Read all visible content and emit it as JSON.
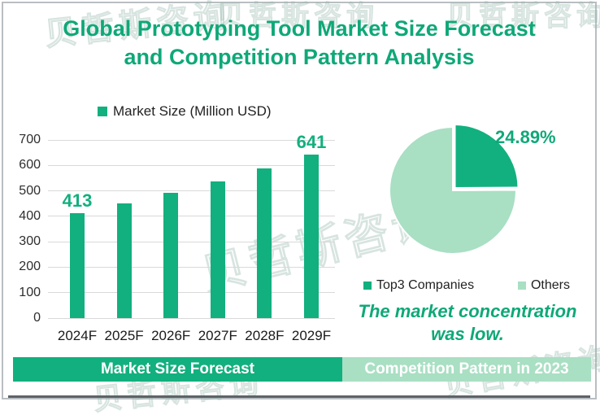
{
  "page": {
    "title_line1": "Global Prototyping Tool Market Size Forecast",
    "title_line2": "and Competition Pattern Analysis"
  },
  "colors": {
    "green": "#0FA878",
    "green_bright": "#12B07E",
    "green_light": "#A9DFC3",
    "gridline": "#D9D9D9",
    "axis_text": "#2E2E2E",
    "frame_border": "#B9BEC2",
    "bottom_rule": "#5D6367"
  },
  "watermark": {
    "text": "贝哲斯咨询"
  },
  "chart_data": [
    {
      "type": "bar",
      "title": "Market Size Forecast",
      "legend": [
        "Market Size (Million USD)"
      ],
      "categories": [
        "2024F",
        "2025F",
        "2026F",
        "2027F",
        "2028F",
        "2029F"
      ],
      "values": [
        413,
        451,
        492,
        538,
        587,
        641
      ],
      "labeled_points": [
        {
          "category": "2024F",
          "label": "413"
        },
        {
          "category": "2029F",
          "label": "641"
        }
      ],
      "xlabel": "",
      "ylabel": "",
      "ylim": [
        0,
        700
      ],
      "ytick_step": 100,
      "grid": true,
      "bar_color": "#12B07E"
    },
    {
      "type": "pie",
      "title": "Competition Pattern in 2023",
      "labels": [
        "Top3 Companies",
        "Others"
      ],
      "values": [
        24.89,
        75.11
      ],
      "slice_colors": [
        "#12B07E",
        "#A9DFC3"
      ],
      "annotation": "24.89%",
      "start_angle": "12 o'clock",
      "direction": "clockwise",
      "exploded_slice": "Top3 Companies",
      "legend_position": "bottom"
    }
  ],
  "bar_section": {
    "legend_label": "Market Size (Million USD)",
    "y_ticks": [
      700,
      600,
      500,
      400,
      300,
      200,
      100,
      0
    ],
    "callouts": [
      {
        "index": 0,
        "text": "413"
      },
      {
        "index": 5,
        "text": "641"
      }
    ],
    "footer": "Market Size Forecast"
  },
  "pie_section": {
    "percent_label": "24.89%",
    "legend": [
      "Top3 Companies",
      "Others"
    ],
    "note_line1": "The market concentration",
    "note_line2": "was low.",
    "footer": "Competition Pattern in 2023"
  }
}
